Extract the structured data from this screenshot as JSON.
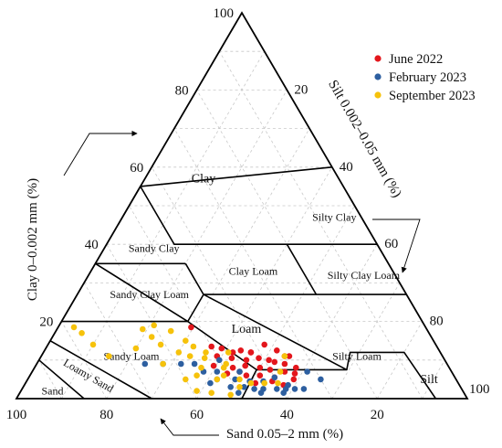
{
  "chart_data": {
    "type": "scatter",
    "subtype": "ternary-soil-texture",
    "axes": {
      "clay": {
        "label": "Clay 0–0.002 mm (%)",
        "ticks": [
          20,
          40,
          60,
          80,
          100
        ]
      },
      "silt": {
        "label": "Silt 0.002–0.05 mm (%)",
        "ticks": [
          20,
          40,
          60,
          80,
          100
        ]
      },
      "sand": {
        "label": "Sand 0.05–2 mm (%)",
        "ticks": [
          100,
          80,
          60,
          40,
          20
        ]
      }
    },
    "zones": [
      {
        "name": "Clay",
        "sand": 30,
        "clay": 57
      },
      {
        "name": "Silty Clay",
        "sand": 6,
        "clay": 47
      },
      {
        "name": "Sandy Clay",
        "sand": 50,
        "clay": 39
      },
      {
        "name": "Clay Loam",
        "sand": 31,
        "clay": 33
      },
      {
        "name": "Silty Clay Loam",
        "sand": 7,
        "clay": 32
      },
      {
        "name": "Sandy Clay Loam",
        "sand": 57,
        "clay": 27
      },
      {
        "name": "Loam",
        "sand": 40,
        "clay": 18
      },
      {
        "name": "Sandy Loam",
        "sand": 69,
        "clay": 11
      },
      {
        "name": "Silty Loam",
        "sand": 19,
        "clay": 11
      },
      {
        "name": "Silt",
        "sand": 6,
        "clay": 5
      },
      {
        "name": "Loamy Sand",
        "sand": 81,
        "clay": 6,
        "rotate": 30
      },
      {
        "name": "Sand",
        "sand": 91,
        "clay": 2
      }
    ],
    "legend": {
      "position": "top-right"
    },
    "series": [
      {
        "name": "June 2022",
        "color": "#e3161c",
        "points": [
          [
            52,
            18.5
          ],
          [
            50,
            13.5
          ],
          [
            48,
            13
          ],
          [
            46,
            12
          ],
          [
            44,
            12.5
          ],
          [
            42,
            12
          ],
          [
            38,
            14
          ],
          [
            36,
            12.5
          ],
          [
            35,
            11
          ],
          [
            34,
            11
          ],
          [
            50,
            11
          ],
          [
            47,
            10.5
          ],
          [
            44,
            10
          ],
          [
            41,
            10.5
          ],
          [
            39,
            10
          ],
          [
            36,
            9
          ],
          [
            52,
            8.5
          ],
          [
            48,
            8
          ],
          [
            45,
            8.5
          ],
          [
            42,
            8
          ],
          [
            40,
            7.5
          ],
          [
            37,
            7
          ],
          [
            50,
            6.5
          ],
          [
            46,
            6
          ],
          [
            43,
            6
          ],
          [
            40,
            5.5
          ],
          [
            36,
            5
          ],
          [
            34,
            8
          ],
          [
            45,
            4
          ],
          [
            39,
            3.5
          ],
          [
            42,
            12
          ],
          [
            38,
            9.5
          ],
          [
            47,
            7
          ],
          [
            41,
            4.5
          ],
          [
            35,
            6.5
          ]
        ]
      },
      {
        "name": "February 2023",
        "color": "#2d5fa0",
        "points": [
          [
            67,
            9
          ],
          [
            63,
            9
          ],
          [
            59,
            9
          ],
          [
            56,
            9
          ],
          [
            50,
            10
          ],
          [
            55,
            7
          ],
          [
            52,
            7
          ],
          [
            53,
            5
          ],
          [
            49,
            5
          ],
          [
            46,
            4.5
          ],
          [
            43,
            4.5
          ],
          [
            40,
            5.5
          ],
          [
            38,
            3.5
          ],
          [
            51,
            3
          ],
          [
            48,
            3
          ],
          [
            46,
            2.5
          ],
          [
            44,
            2.5
          ],
          [
            41,
            2.5
          ],
          [
            39,
            2.5
          ],
          [
            37,
            2.5
          ],
          [
            35,
            2.5
          ],
          [
            50,
            1.5
          ],
          [
            45,
            1.5
          ],
          [
            40,
            1.5
          ],
          [
            30,
            5
          ],
          [
            32,
            7
          ],
          [
            55,
            4
          ],
          [
            47,
            7
          ]
        ]
      },
      {
        "name": "September 2023",
        "color": "#f6c20b",
        "points": [
          [
            78,
            18.5
          ],
          [
            77,
            17
          ],
          [
            76,
            14
          ],
          [
            74,
            11
          ],
          [
            67,
            13
          ],
          [
            63,
            18
          ],
          [
            60,
            19
          ],
          [
            57,
            17.5
          ],
          [
            61,
            14
          ],
          [
            58,
            12
          ],
          [
            55,
            15
          ],
          [
            56,
            11
          ],
          [
            53,
            10.5
          ],
          [
            52,
            12
          ],
          [
            55,
            8
          ],
          [
            50,
            8
          ],
          [
            57,
            6
          ],
          [
            53,
            5
          ],
          [
            51,
            6
          ],
          [
            48,
            5
          ],
          [
            46,
            4
          ],
          [
            43,
            4
          ],
          [
            49,
            3
          ],
          [
            40,
            4
          ],
          [
            38,
            7
          ],
          [
            35,
            11
          ],
          [
            59,
            2
          ],
          [
            56,
            1.5
          ],
          [
            52,
            1
          ],
          [
            60,
            5
          ],
          [
            63,
            9
          ],
          [
            62,
            16
          ],
          [
            54,
            13.5
          ],
          [
            49,
            9
          ],
          [
            47,
            12
          ]
        ]
      }
    ]
  }
}
